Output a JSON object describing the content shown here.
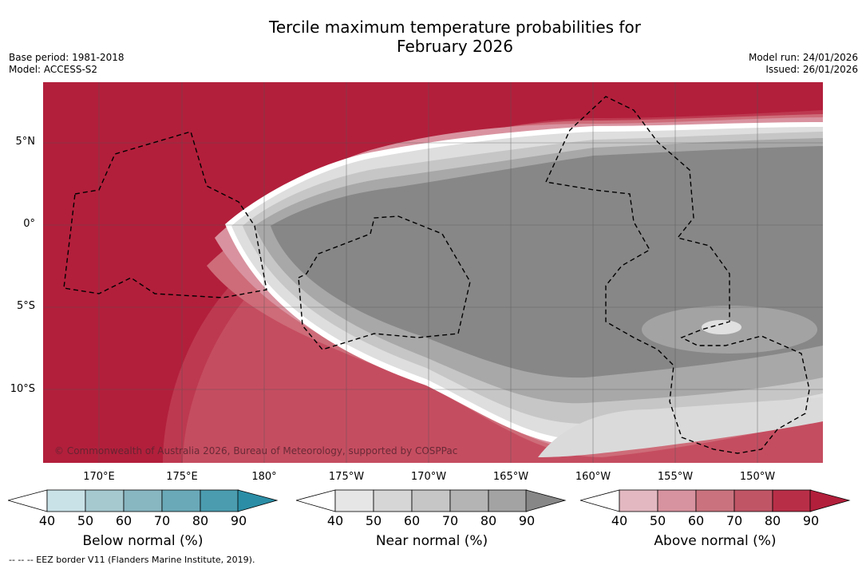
{
  "title_line1": "Tercile maximum temperature probabilities for",
  "title_line2": "February 2026",
  "base_period": "Base period: 1981-2018",
  "model": "Model: ACCESS-S2",
  "model_run": "Model run: 24/01/2026",
  "issued": "Issued: 26/01/2026",
  "lat_labels": [
    "5°N",
    "0°",
    "5°S",
    "10°S"
  ],
  "lon_labels": [
    "170°E",
    "175°E",
    "180°",
    "175°W",
    "170°W",
    "165°W",
    "160°W",
    "155°W",
    "150°W"
  ],
  "copyright": "© Commonwealth of Australia 2026, Bureau of Meteorology, supported by COSPPac",
  "colorbars": [
    {
      "label": "Below normal (%)",
      "ticks": [
        "40",
        "50",
        "60",
        "70",
        "80",
        "90"
      ],
      "colors": [
        "#c9e2e8",
        "#a6c9d0",
        "#88b6c1",
        "#6aa9b8",
        "#4b9caf",
        "#2b8ea6"
      ]
    },
    {
      "label": "Near normal (%)",
      "ticks": [
        "40",
        "50",
        "60",
        "70",
        "80",
        "90"
      ],
      "colors": [
        "#e6e6e6",
        "#d6d6d6",
        "#c6c6c6",
        "#b4b4b4",
        "#a3a3a3",
        "#878787"
      ]
    },
    {
      "label": "Above normal (%)",
      "ticks": [
        "40",
        "50",
        "60",
        "70",
        "80",
        "90"
      ],
      "colors": [
        "#e3b8c0",
        "#d7939f",
        "#ca737f",
        "#c05566",
        "#b92e47",
        "#b21f3b"
      ]
    }
  ],
  "footnote": "--  --  -- EEZ border V11 (Flanders Marine Institute, 2019).",
  "colors": {
    "above_strong": "#b21f3b",
    "above_80": "#bb3a51",
    "above_70": "#c9505f",
    "above_60": "#d0727f",
    "above_50": "#da97a1",
    "near_base": "#878787",
    "near_60": "#a6a6a6",
    "near_50": "#c4c4c4",
    "near_40": "#dddddd"
  }
}
